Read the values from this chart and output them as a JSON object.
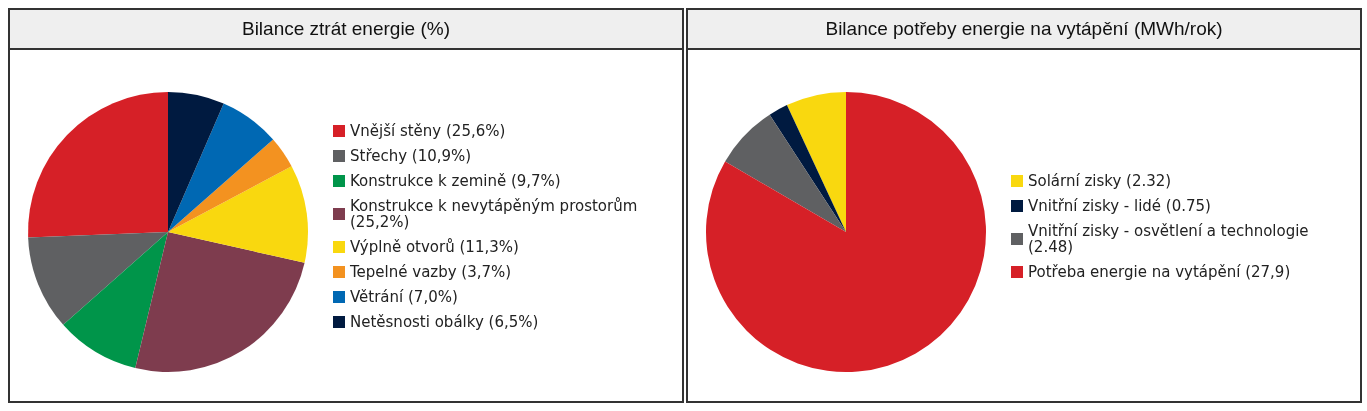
{
  "chart_data": [
    {
      "type": "pie",
      "title": "Bilance ztrát energie (%)",
      "legend": "right",
      "categories": [
        "Vnější stěny (25,6%)",
        "Střechy (10,9%)",
        "Konstrukce k zemině (9,7%)",
        "Konstrukce k nevytápěným prostorům (25,2%)",
        "Výplně otvorů (11,3%)",
        "Tepelné vazby (3,7%)",
        "Větrání (7,0%)",
        "Netěsnosti obálky (6,5%)"
      ],
      "values": [
        25.6,
        10.9,
        9.7,
        25.2,
        11.3,
        3.7,
        7.0,
        6.5
      ],
      "colors": [
        "#d62027",
        "#5f6062",
        "#00954a",
        "#7e3c4e",
        "#f9d80f",
        "#f39220",
        "#0068b3",
        "#001a40"
      ]
    },
    {
      "type": "pie",
      "title": "Bilance potřeby energie na vytápění (MWh/rok)",
      "legend": "right",
      "categories": [
        "Solární zisky (2.32)",
        "Vnitřní zisky - lidé (0.75)",
        "Vnitřní zisky - osvětlení a technologie (2.48)",
        "Potřeba energie na vytápění (27,9)"
      ],
      "values": [
        2.32,
        0.75,
        2.48,
        27.9
      ],
      "colors": [
        "#f9d80f",
        "#001a40",
        "#5f6062",
        "#d62027"
      ]
    }
  ]
}
